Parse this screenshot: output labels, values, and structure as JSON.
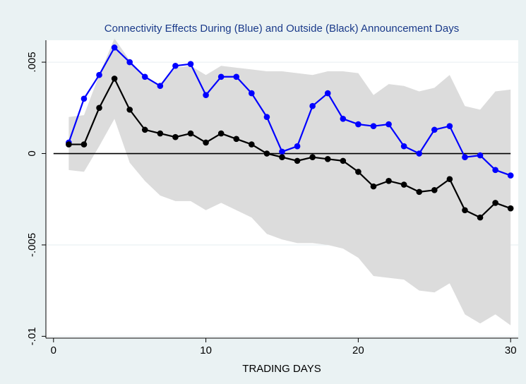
{
  "chart_data": {
    "type": "line",
    "title": "Connectivity Effects During (Blue) and Outside (Black) Announcement Days",
    "xlabel": "TRADING DAYS",
    "ylabel": "",
    "xlim": [
      -0.5,
      30.5
    ],
    "ylim": [
      -0.0101,
      0.0062
    ],
    "x_ticks": [
      0,
      10,
      20,
      30
    ],
    "x_tick_labels": [
      "0",
      "10",
      "20",
      "30"
    ],
    "y_ticks": [
      0.005,
      0,
      -0.005,
      -0.01
    ],
    "y_tick_labels": [
      ".005",
      "0",
      "-.005",
      "-.01"
    ],
    "grid": true,
    "legend": "none",
    "x": [
      1,
      2,
      3,
      4,
      5,
      6,
      7,
      8,
      9,
      10,
      11,
      12,
      13,
      14,
      15,
      16,
      17,
      18,
      19,
      20,
      21,
      22,
      23,
      24,
      25,
      26,
      27,
      28,
      29,
      30
    ],
    "band": {
      "color": "#dcdcdc",
      "upper": [
        0.002,
        0.0021,
        0.0043,
        0.0063,
        0.0051,
        0.0042,
        0.0037,
        0.0047,
        0.0048,
        0.0043,
        0.0048,
        0.0047,
        0.0046,
        0.0045,
        0.0045,
        0.0044,
        0.0043,
        0.0045,
        0.0045,
        0.0044,
        0.0032,
        0.0038,
        0.0037,
        0.0034,
        0.0036,
        0.0043,
        0.0026,
        0.0024,
        0.0034,
        0.0035
      ],
      "lower": [
        -0.0009,
        -0.001,
        0.0004,
        0.0019,
        -0.0005,
        -0.0015,
        -0.0023,
        -0.0026,
        -0.0026,
        -0.0031,
        -0.0027,
        -0.0031,
        -0.0035,
        -0.0044,
        -0.0047,
        -0.0049,
        -0.0049,
        -0.005,
        -0.0052,
        -0.0057,
        -0.0067,
        -0.0068,
        -0.0069,
        -0.0075,
        -0.0076,
        -0.0071,
        -0.0088,
        -0.0093,
        -0.0088,
        -0.0094
      ]
    },
    "series": [
      {
        "color": "#0000ff",
        "values": [
          0.0006,
          0.003,
          0.0043,
          0.0058,
          0.005,
          0.0042,
          0.0037,
          0.0048,
          0.0049,
          0.0032,
          0.0042,
          0.0042,
          0.0033,
          0.002,
          0.0001,
          0.0004,
          0.0026,
          0.0033,
          0.0019,
          0.0016,
          0.0015,
          0.0016,
          0.0004,
          0.0,
          0.0013,
          0.0015,
          -0.0002,
          -0.0001,
          -0.0009,
          -0.0012
        ]
      },
      {
        "color": "#000000",
        "values": [
          0.0005,
          0.0005,
          0.0025,
          0.0041,
          0.0024,
          0.0013,
          0.0011,
          0.0009,
          0.0011,
          0.0006,
          0.0011,
          0.0008,
          0.0005,
          0.0,
          -0.0002,
          -0.0004,
          -0.0002,
          -0.0003,
          -0.0004,
          -0.001,
          -0.0018,
          -0.0015,
          -0.0017,
          -0.0021,
          -0.002,
          -0.0014,
          -0.0031,
          -0.0035,
          -0.0027,
          -0.003
        ]
      }
    ]
  }
}
